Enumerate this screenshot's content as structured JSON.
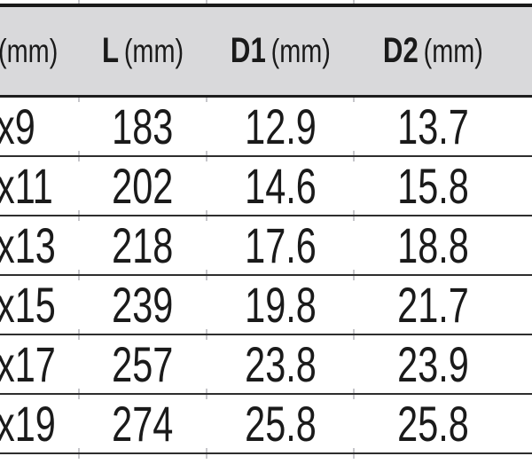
{
  "table": {
    "headers": [
      {
        "bold": "",
        "unit": "(mm)"
      },
      {
        "bold": "L",
        "unit": "(mm)"
      },
      {
        "bold": "D1",
        "unit": "(mm)"
      },
      {
        "bold": "D2",
        "unit": "(mm)"
      }
    ],
    "rows": [
      [
        "x9",
        "183",
        "12.9",
        "13.7"
      ],
      [
        "x11",
        "202",
        "14.6",
        "15.8"
      ],
      [
        "x13",
        "218",
        "17.6",
        "18.8"
      ],
      [
        "x15",
        "239",
        "19.8",
        "21.7"
      ],
      [
        "x17",
        "257",
        "23.8",
        "23.9"
      ],
      [
        "x19",
        "274",
        "25.8",
        "25.8"
      ]
    ]
  },
  "colors": {
    "header_bg": "#d9d9db",
    "border_dark": "#191919",
    "row_divider": "#2e2e2e",
    "column_tick": "#c7c7cb",
    "text": "#1a1a1a"
  }
}
